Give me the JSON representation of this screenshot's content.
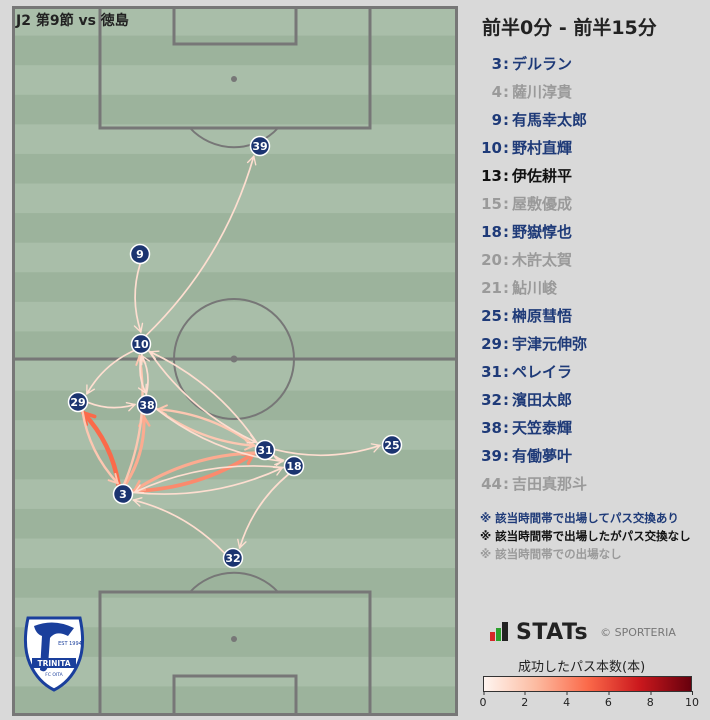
{
  "match": {
    "title": "J2 第9節 vs 徳島"
  },
  "time_range": "前半0分 - 前半15分",
  "roster": [
    {
      "num": "3",
      "name": "デルラン",
      "status": "played"
    },
    {
      "num": "4",
      "name": "薩川淳貴",
      "status": "none"
    },
    {
      "num": "9",
      "name": "有馬幸太郎",
      "status": "played"
    },
    {
      "num": "10",
      "name": "野村直輝",
      "status": "played"
    },
    {
      "num": "13",
      "name": "伊佐耕平",
      "status": "no_pass"
    },
    {
      "num": "15",
      "name": "屋敷優成",
      "status": "none"
    },
    {
      "num": "18",
      "name": "野嶽惇也",
      "status": "played"
    },
    {
      "num": "20",
      "name": "木許太賀",
      "status": "none"
    },
    {
      "num": "21",
      "name": "鮎川峻",
      "status": "none"
    },
    {
      "num": "25",
      "name": "榊原彗悟",
      "status": "played"
    },
    {
      "num": "29",
      "name": "宇津元伸弥",
      "status": "played"
    },
    {
      "num": "31",
      "name": "ペレイラ",
      "status": "played"
    },
    {
      "num": "32",
      "name": "濱田太郎",
      "status": "played"
    },
    {
      "num": "38",
      "name": "天笠泰輝",
      "status": "played"
    },
    {
      "num": "39",
      "name": "有働夢叶",
      "status": "played"
    },
    {
      "num": "44",
      "name": "吉田真那斗",
      "status": "none"
    }
  ],
  "roster_separator": ":",
  "notes": [
    {
      "text": "※ 該当時間帯で出場してパス交換あり",
      "kind": "played"
    },
    {
      "text": "※ 該当時間帯で出場したがパス交換なし",
      "kind": "no_pass"
    },
    {
      "text": "※ 該当時間帯での出場なし",
      "kind": "none"
    }
  ],
  "brand": {
    "name": "STATs",
    "copyright": "© SPORTERIA"
  },
  "logo": {
    "text_top": "EST 1994",
    "text_main": "TRINITA",
    "text_sub": "FC OITA"
  },
  "legend": {
    "title": "成功したパス本数(本)",
    "ticks": [
      "0",
      "2",
      "4",
      "6",
      "8",
      "10"
    ],
    "min": 0,
    "max": 10
  },
  "colors": {
    "played": "#1e3a78",
    "no_pass": "#111111",
    "none": "#9a9a9a",
    "node": "#1b3470",
    "pitch_light": "#a9bea9",
    "pitch_dark": "#9cb39c",
    "line": "#777777"
  },
  "players_on_pitch": [
    "39",
    "9",
    "10",
    "29",
    "38",
    "31",
    "25",
    "18",
    "3",
    "32"
  ],
  "passes": [
    {
      "from": "3",
      "to": "29",
      "count": 5
    },
    {
      "from": "3",
      "to": "31",
      "count": 4
    },
    {
      "from": "31",
      "to": "3",
      "count": 3
    },
    {
      "from": "3",
      "to": "38",
      "count": 3
    },
    {
      "from": "3",
      "to": "10",
      "count": 2
    },
    {
      "from": "29",
      "to": "3",
      "count": 2
    },
    {
      "from": "38",
      "to": "31",
      "count": 2
    },
    {
      "from": "31",
      "to": "38",
      "count": 2
    },
    {
      "from": "29",
      "to": "38",
      "count": 1
    },
    {
      "from": "38",
      "to": "10",
      "count": 1
    },
    {
      "from": "10",
      "to": "38",
      "count": 1
    },
    {
      "from": "10",
      "to": "29",
      "count": 1
    },
    {
      "from": "10",
      "to": "39",
      "count": 1
    },
    {
      "from": "9",
      "to": "10",
      "count": 1
    },
    {
      "from": "10",
      "to": "31",
      "count": 1
    },
    {
      "from": "31",
      "to": "10",
      "count": 1
    },
    {
      "from": "31",
      "to": "25",
      "count": 1
    },
    {
      "from": "18",
      "to": "32",
      "count": 1
    },
    {
      "from": "18",
      "to": "3",
      "count": 1
    },
    {
      "from": "31",
      "to": "18",
      "count": 1
    },
    {
      "from": "32",
      "to": "3",
      "count": 1
    },
    {
      "from": "38",
      "to": "18",
      "count": 1
    },
    {
      "from": "3",
      "to": "18",
      "count": 1
    }
  ]
}
